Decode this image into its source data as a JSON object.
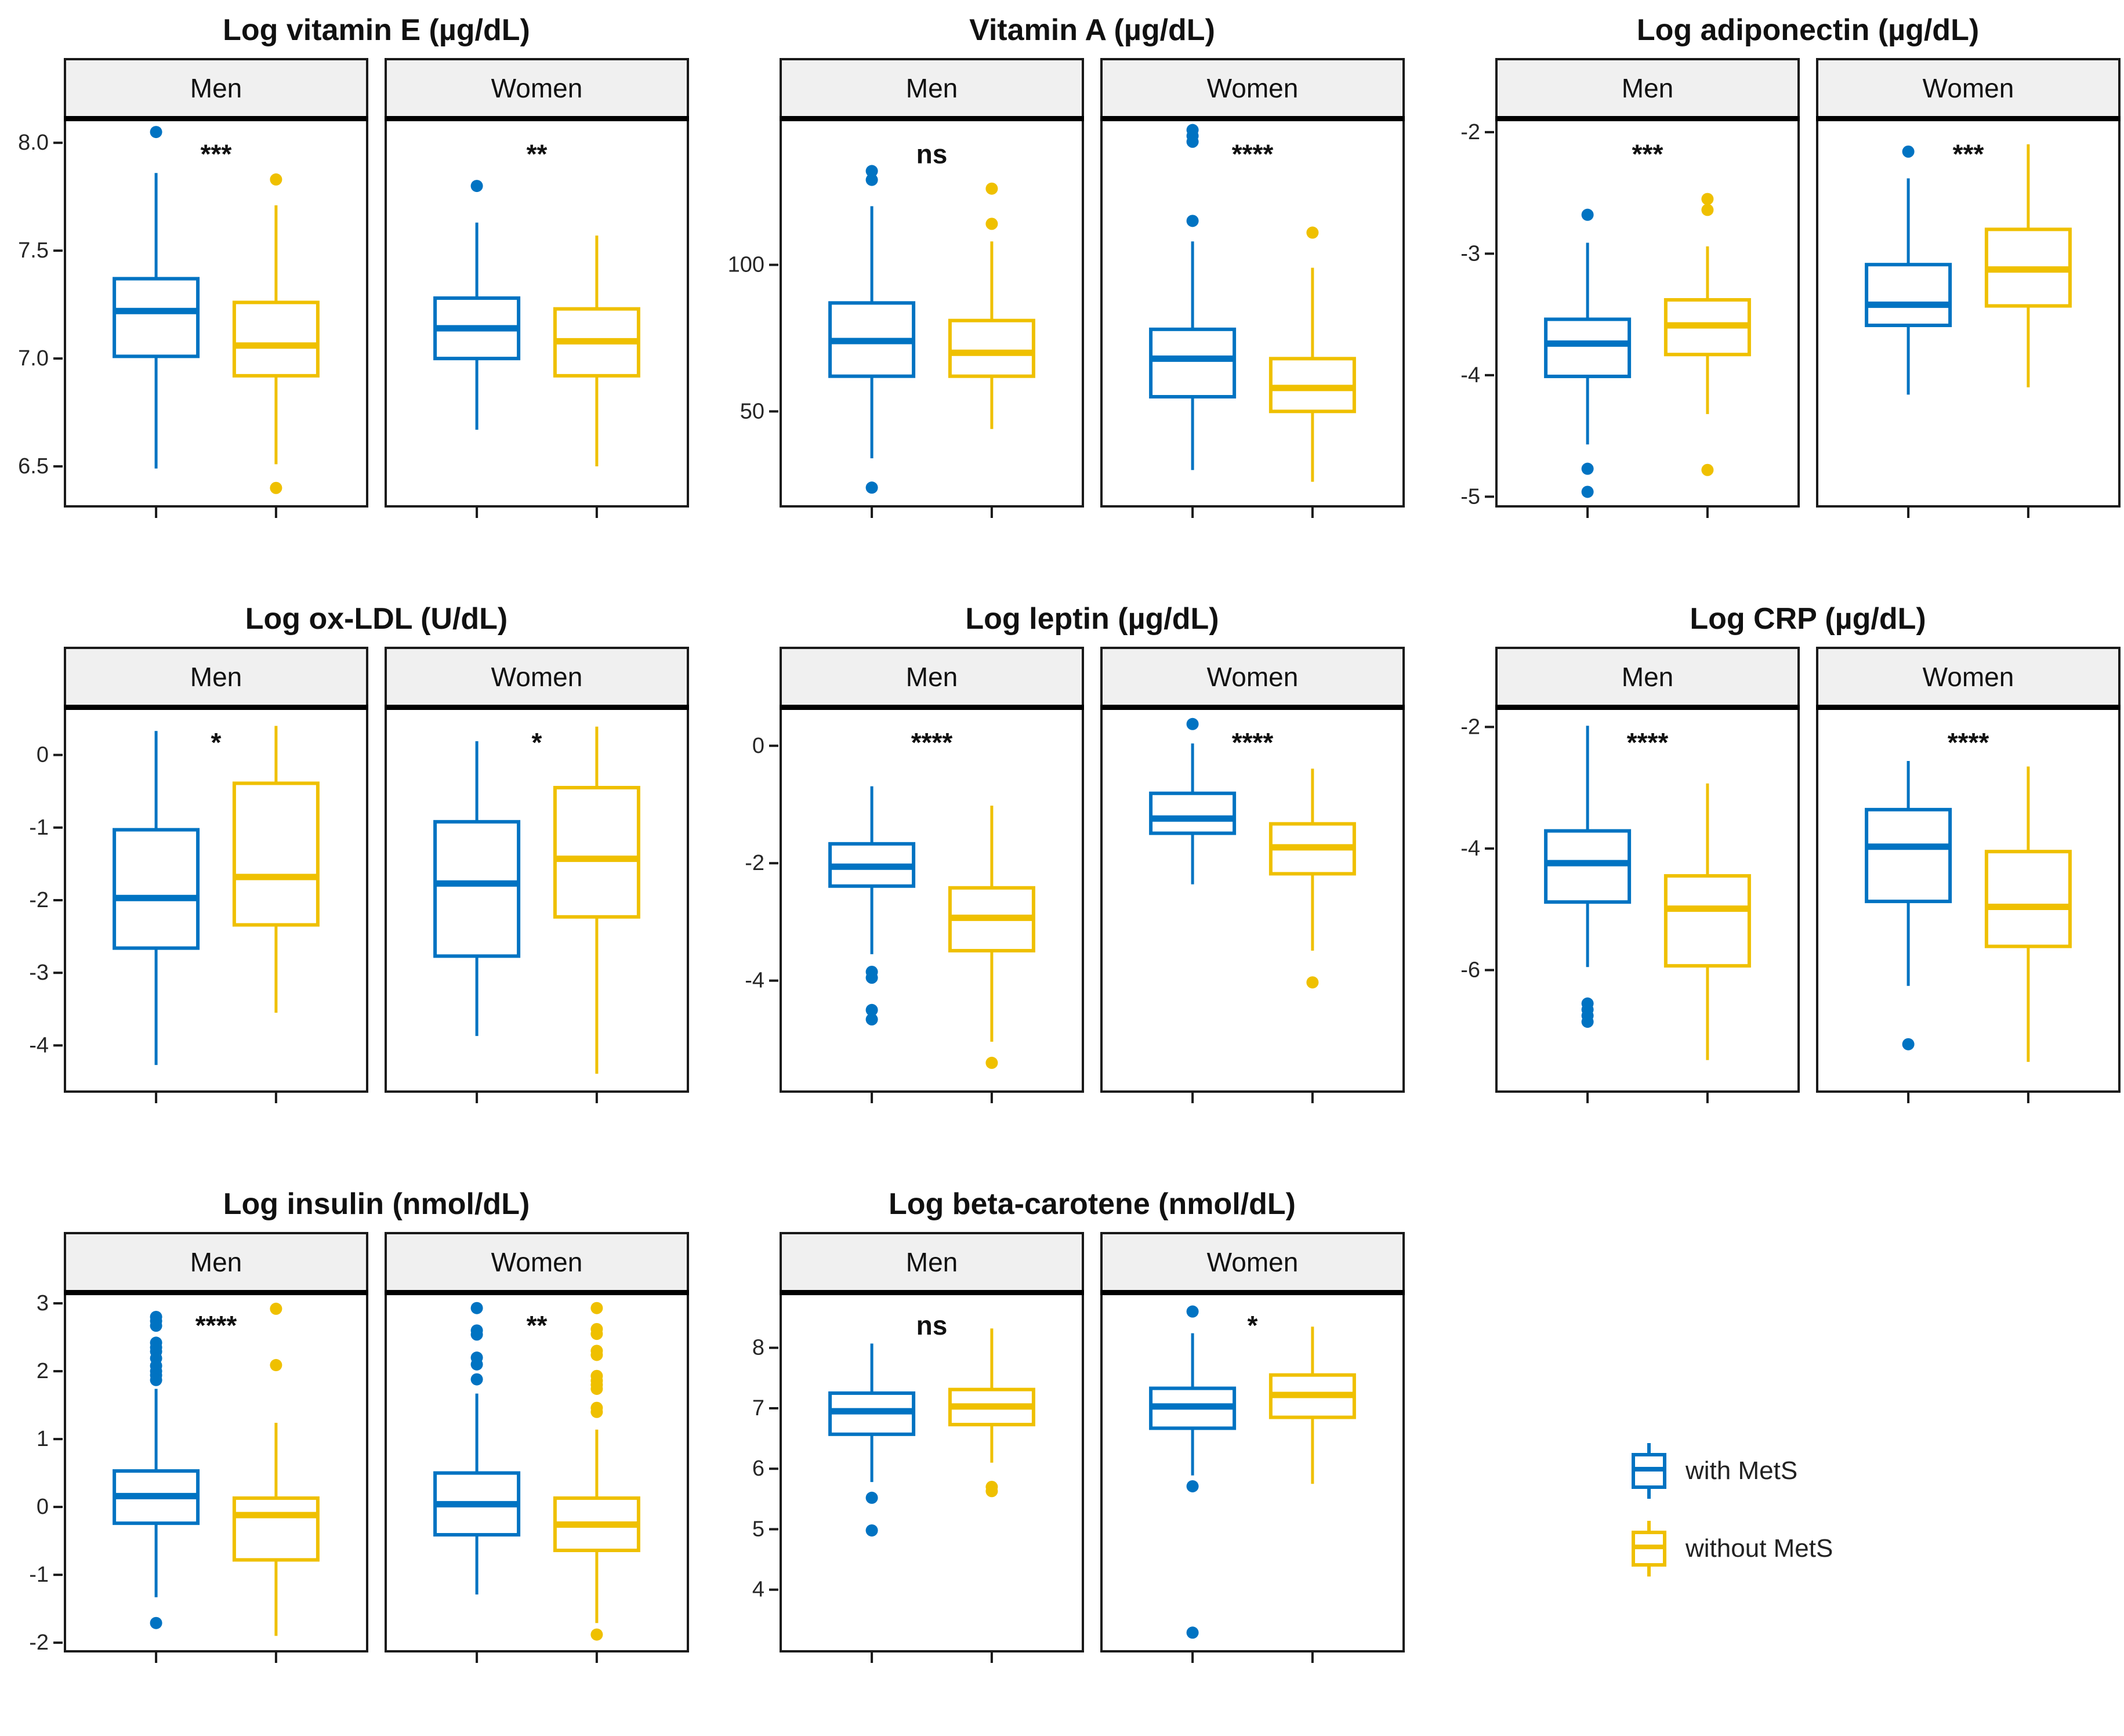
{
  "page": {
    "background": "#ffffff"
  },
  "legend": {
    "items": [
      {
        "label": "with MetS",
        "color": "#0073C2"
      },
      {
        "label": "without MetS",
        "color": "#EFC000"
      }
    ]
  },
  "chart_data": {
    "type": "boxplot",
    "groups": [
      "with MetS",
      "without MetS"
    ],
    "group_colors": [
      "#0073C2",
      "#EFC000"
    ],
    "facet_labels": [
      "Men",
      "Women"
    ],
    "legend_position": "bottom-right",
    "grid": "off",
    "panels": [
      {
        "title": "Log vitamin E (µg/dL)",
        "ylim": [
          6.32,
          8.1
        ],
        "yticks": [
          8.0,
          7.5,
          7.0,
          6.5
        ],
        "ytick_labels": [
          "8.0",
          "7.5",
          "7.0",
          "6.5"
        ],
        "facets": [
          {
            "name": "Men",
            "sig": "***",
            "boxes": [
              {
                "group": "with MetS",
                "whislo": 6.49,
                "q1": 7.01,
                "med": 7.22,
                "q3": 7.37,
                "whishi": 7.86,
                "outliers": [
                  8.05
                ]
              },
              {
                "group": "without MetS",
                "whislo": 6.51,
                "q1": 6.92,
                "med": 7.06,
                "q3": 7.26,
                "whishi": 7.71,
                "outliers": [
                  7.83,
                  6.4
                ]
              }
            ]
          },
          {
            "name": "Women",
            "sig": "**",
            "boxes": [
              {
                "group": "with MetS",
                "whislo": 6.67,
                "q1": 7.0,
                "med": 7.14,
                "q3": 7.28,
                "whishi": 7.63,
                "outliers": [
                  7.8
                ]
              },
              {
                "group": "without MetS",
                "whislo": 6.5,
                "q1": 6.92,
                "med": 7.08,
                "q3": 7.23,
                "whishi": 7.57,
                "outliers": []
              }
            ]
          }
        ]
      },
      {
        "title": "Vitamin A (µg/dL)",
        "ylim": [
          18,
          149
        ],
        "yticks": [
          100,
          50
        ],
        "ytick_labels": [
          "100",
          "50"
        ],
        "facets": [
          {
            "name": "Men",
            "sig": "ns",
            "boxes": [
              {
                "group": "with MetS",
                "whislo": 34,
                "q1": 62,
                "med": 74,
                "q3": 87,
                "whishi": 120,
                "outliers": [
                  132,
                  129,
                  24
                ]
              },
              {
                "group": "without MetS",
                "whislo": 44,
                "q1": 62,
                "med": 70,
                "q3": 81,
                "whishi": 108,
                "outliers": [
                  126,
                  114
                ]
              }
            ]
          },
          {
            "name": "Women",
            "sig": "****",
            "boxes": [
              {
                "group": "with MetS",
                "whislo": 30,
                "q1": 55,
                "med": 68,
                "q3": 78,
                "whishi": 108,
                "outliers": [
                  146,
                  144,
                  142,
                  115
                ]
              },
              {
                "group": "without MetS",
                "whislo": 26,
                "q1": 50,
                "med": 58,
                "q3": 68,
                "whishi": 99,
                "outliers": [
                  111
                ]
              }
            ]
          }
        ]
      },
      {
        "title": "Log adiponectin (µg/dL)",
        "ylim": [
          -5.07,
          -1.91
        ],
        "yticks": [
          -2,
          -3,
          -4,
          -5
        ],
        "ytick_labels": [
          "-2",
          "-3",
          "-4",
          "-5"
        ],
        "facets": [
          {
            "name": "Men",
            "sig": "***",
            "boxes": [
              {
                "group": "with MetS",
                "whislo": -4.57,
                "q1": -4.01,
                "med": -3.74,
                "q3": -3.54,
                "whishi": -2.91,
                "outliers": [
                  -2.68,
                  -4.77,
                  -4.96
                ]
              },
              {
                "group": "without MetS",
                "whislo": -4.32,
                "q1": -3.83,
                "med": -3.59,
                "q3": -3.38,
                "whishi": -2.94,
                "outliers": [
                  -2.55,
                  -2.64,
                  -4.78
                ]
              }
            ]
          },
          {
            "name": "Women",
            "sig": "***",
            "boxes": [
              {
                "group": "with MetS",
                "whislo": -4.16,
                "q1": -3.59,
                "med": -3.42,
                "q3": -3.09,
                "whishi": -2.38,
                "outliers": [
                  -2.16
                ]
              },
              {
                "group": "without MetS",
                "whislo": -4.1,
                "q1": -3.43,
                "med": -3.13,
                "q3": -2.8,
                "whishi": -2.1,
                "outliers": []
              }
            ]
          }
        ]
      },
      {
        "title": "Log ox-LDL (U/dL)",
        "ylim": [
          -4.62,
          0.62
        ],
        "yticks": [
          0,
          -1,
          -2,
          -3,
          -4
        ],
        "ytick_labels": [
          "0",
          "-1",
          "-2",
          "-3",
          "-4"
        ],
        "facets": [
          {
            "name": "Men",
            "sig": "*",
            "boxes": [
              {
                "group": "with MetS",
                "whislo": -4.27,
                "q1": -2.66,
                "med": -1.97,
                "q3": -1.03,
                "whishi": 0.33,
                "outliers": []
              },
              {
                "group": "without MetS",
                "whislo": -3.55,
                "q1": -2.34,
                "med": -1.68,
                "q3": -0.39,
                "whishi": 0.4,
                "outliers": []
              }
            ]
          },
          {
            "name": "Women",
            "sig": "*",
            "boxes": [
              {
                "group": "with MetS",
                "whislo": -3.87,
                "q1": -2.77,
                "med": -1.77,
                "q3": -0.92,
                "whishi": 0.19,
                "outliers": []
              },
              {
                "group": "without MetS",
                "whislo": -4.39,
                "q1": -2.23,
                "med": -1.43,
                "q3": -0.45,
                "whishi": 0.39,
                "outliers": []
              }
            ]
          }
        ]
      },
      {
        "title": "Log leptin (µg/dL)",
        "ylim": [
          -5.87,
          0.61
        ],
        "yticks": [
          0,
          -2,
          -4
        ],
        "ytick_labels": [
          "0",
          "-2",
          "-4"
        ],
        "facets": [
          {
            "name": "Men",
            "sig": "****",
            "boxes": [
              {
                "group": "with MetS",
                "whislo": -3.55,
                "q1": -2.39,
                "med": -2.06,
                "q3": -1.67,
                "whishi": -0.69,
                "outliers": [
                  -3.85,
                  -3.95,
                  -4.5,
                  -4.66
                ]
              },
              {
                "group": "without MetS",
                "whislo": -5.04,
                "q1": -3.49,
                "med": -2.93,
                "q3": -2.42,
                "whishi": -1.02,
                "outliers": [
                  -5.4
                ]
              }
            ]
          },
          {
            "name": "Women",
            "sig": "****",
            "boxes": [
              {
                "group": "with MetS",
                "whislo": -2.36,
                "q1": -1.49,
                "med": -1.24,
                "q3": -0.81,
                "whishi": 0.04,
                "outliers": [
                  0.37
                ]
              },
              {
                "group": "without MetS",
                "whislo": -3.49,
                "q1": -2.18,
                "med": -1.73,
                "q3": -1.33,
                "whishi": -0.39,
                "outliers": [
                  -4.03
                ]
              }
            ]
          }
        ]
      },
      {
        "title": "Log CRP (µg/dL)",
        "ylim": [
          -7.98,
          -1.72
        ],
        "yticks": [
          -2,
          -4,
          -6
        ],
        "ytick_labels": [
          "-2",
          "-4",
          "-6"
        ],
        "facets": [
          {
            "name": "Men",
            "sig": "****",
            "boxes": [
              {
                "group": "with MetS",
                "whislo": -5.95,
                "q1": -4.88,
                "med": -4.24,
                "q3": -3.71,
                "whishi": -1.98,
                "outliers": [
                  -6.55,
                  -6.65,
                  -6.75,
                  -6.85
                ]
              },
              {
                "group": "without MetS",
                "whislo": -7.48,
                "q1": -5.93,
                "med": -4.99,
                "q3": -4.45,
                "whishi": -2.93,
                "outliers": []
              }
            ]
          },
          {
            "name": "Women",
            "sig": "****",
            "boxes": [
              {
                "group": "with MetS",
                "whislo": -6.26,
                "q1": -4.87,
                "med": -3.97,
                "q3": -3.36,
                "whishi": -2.56,
                "outliers": [
                  -7.22
                ]
              },
              {
                "group": "without MetS",
                "whislo": -7.51,
                "q1": -5.61,
                "med": -4.96,
                "q3": -4.05,
                "whishi": -2.65,
                "outliers": []
              }
            ]
          }
        ]
      },
      {
        "title": "Log insulin (nmol/dL)",
        "ylim": [
          -2.11,
          3.12
        ],
        "yticks": [
          3,
          2,
          1,
          0,
          -1,
          -2
        ],
        "ytick_labels": [
          "3",
          "2",
          "1",
          "0",
          "-1",
          "-2"
        ],
        "facets": [
          {
            "name": "Men",
            "sig": "****",
            "boxes": [
              {
                "group": "with MetS",
                "whislo": -1.33,
                "q1": -0.24,
                "med": 0.16,
                "q3": 0.53,
                "whishi": 1.74,
                "outliers": [
                  2.8,
                  2.74,
                  2.67,
                  2.42,
                  2.35,
                  2.29,
                  2.19,
                  2.08,
                  2.0,
                  1.94,
                  1.87,
                  -1.71
                ]
              },
              {
                "group": "without MetS",
                "whislo": -1.9,
                "q1": -0.78,
                "med": -0.12,
                "q3": 0.13,
                "whishi": 1.24,
                "outliers": [
                  2.92,
                  2.09
                ]
              }
            ]
          },
          {
            "name": "Women",
            "sig": "**",
            "boxes": [
              {
                "group": "with MetS",
                "whislo": -1.29,
                "q1": -0.41,
                "med": 0.04,
                "q3": 0.5,
                "whishi": 1.67,
                "outliers": [
                  2.93,
                  2.6,
                  2.54,
                  2.2,
                  2.1,
                  1.88
                ]
              },
              {
                "group": "without MetS",
                "whislo": -1.71,
                "q1": -0.64,
                "med": -0.26,
                "q3": 0.13,
                "whishi": 1.14,
                "outliers": [
                  2.93,
                  2.62,
                  2.55,
                  2.3,
                  2.24,
                  1.93,
                  1.86,
                  1.8,
                  1.74,
                  1.46,
                  1.4,
                  -1.88
                ]
              }
            ]
          }
        ]
      },
      {
        "title": "Log beta-carotene (nmol/dL)",
        "ylim": [
          3.0,
          8.87
        ],
        "yticks": [
          8,
          7,
          6,
          5,
          4
        ],
        "ytick_labels": [
          "8",
          "7",
          "6",
          "5",
          "4"
        ],
        "facets": [
          {
            "name": "Men",
            "sig": "ns",
            "boxes": [
              {
                "group": "with MetS",
                "whislo": 5.78,
                "q1": 6.57,
                "med": 6.95,
                "q3": 7.25,
                "whishi": 8.07,
                "outliers": [
                  5.52,
                  4.98
                ]
              },
              {
                "group": "without MetS",
                "whislo": 6.1,
                "q1": 6.73,
                "med": 7.03,
                "q3": 7.31,
                "whishi": 8.32,
                "outliers": [
                  5.7,
                  5.63
                ]
              }
            ]
          },
          {
            "name": "Women",
            "sig": "*",
            "boxes": [
              {
                "group": "with MetS",
                "whislo": 5.89,
                "q1": 6.67,
                "med": 7.03,
                "q3": 7.33,
                "whishi": 8.24,
                "outliers": [
                  8.6,
                  5.71,
                  3.29
                ]
              },
              {
                "group": "without MetS",
                "whislo": 5.75,
                "q1": 6.85,
                "med": 7.22,
                "q3": 7.55,
                "whishi": 8.35,
                "outliers": []
              }
            ]
          }
        ]
      }
    ]
  }
}
